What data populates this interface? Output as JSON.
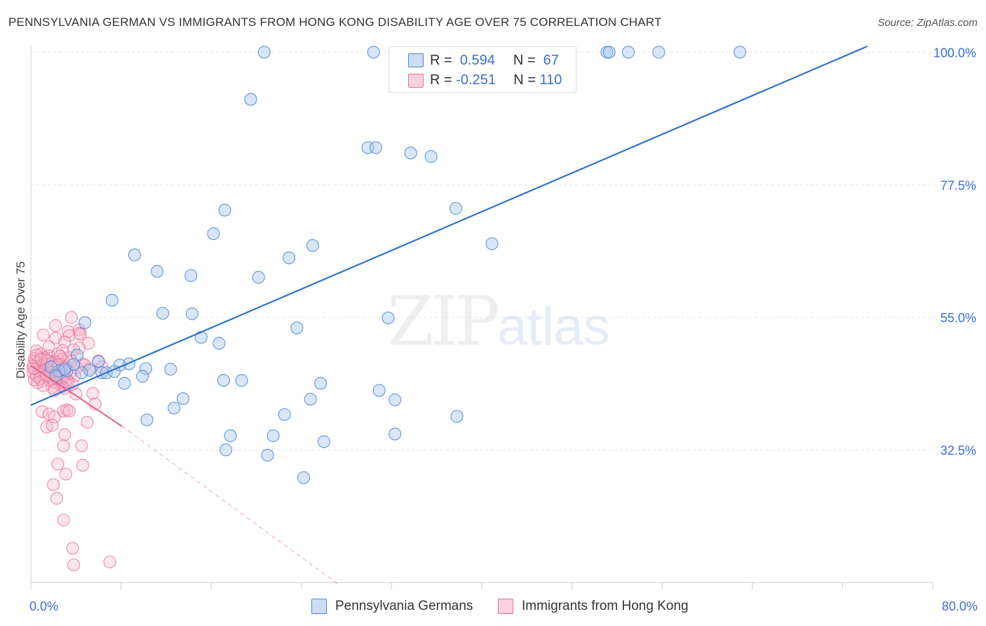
{
  "header": {
    "title": "PENNSYLVANIA GERMAN VS IMMIGRANTS FROM HONG KONG DISABILITY AGE OVER 75 CORRELATION CHART",
    "source": "Source: ZipAtlas.com"
  },
  "watermark": {
    "zip": "ZIP",
    "atlas": "atlas"
  },
  "colors": {
    "blue": "#4a85d8",
    "blue_fill": "rgba(168,200,240,0.45)",
    "blue_line": "#2f72d0",
    "pink": "#e8709a",
    "pink_fill": "rgba(245,180,200,0.35)",
    "pink_line": "#e06090",
    "grid": "#e4e4e4",
    "tick_label": "#3a6fd8"
  },
  "stats": {
    "rows": [
      {
        "r_label": "R =",
        "r_value": "0.594",
        "n_label": "N =",
        "n_value": "67"
      },
      {
        "r_label": "R =",
        "r_value": "-0.251",
        "n_label": "N =",
        "n_value": "110"
      }
    ]
  },
  "legend": {
    "items": [
      {
        "label": "Pennsylvania Germans"
      },
      {
        "label": "Immigrants from Hong Kong"
      }
    ]
  },
  "chart_data": {
    "type": "scatter",
    "title": "PENNSYLVANIA GERMAN VS IMMIGRANTS FROM HONG KONG DISABILITY AGE OVER 75 CORRELATION CHART",
    "xlabel": "",
    "ylabel": "Disability Age Over 75",
    "xlim": [
      0,
      80
    ],
    "ylim": [
      10,
      101
    ],
    "x_tick_labels": [
      "0.0%",
      "80.0%"
    ],
    "y_ticks": [
      32.5,
      55.0,
      77.5,
      100.0
    ],
    "y_tick_labels": [
      "32.5%",
      "55.0%",
      "77.5%",
      "100.0%"
    ],
    "grid": true,
    "series": [
      {
        "name": "Pennsylvania Germans",
        "r": 0.594,
        "n": 67,
        "trend": {
          "x": [
            0,
            74.2
          ],
          "y": [
            40.1,
            101
          ]
        },
        "points": [
          [
            20.7,
            100
          ],
          [
            30.4,
            100
          ],
          [
            51.1,
            100
          ],
          [
            51.3,
            100
          ],
          [
            55.7,
            100
          ],
          [
            53.0,
            100
          ],
          [
            62.9,
            100
          ],
          [
            19.5,
            92
          ],
          [
            29.9,
            83.8
          ],
          [
            30.6,
            83.8
          ],
          [
            33.7,
            82.9
          ],
          [
            35.5,
            82.3
          ],
          [
            17.2,
            73.2
          ],
          [
            37.7,
            73.5
          ],
          [
            16.2,
            69.2
          ],
          [
            40.9,
            67.5
          ],
          [
            25.0,
            67.2
          ],
          [
            9.2,
            65.6
          ],
          [
            22.9,
            65.1
          ],
          [
            11.2,
            62.8
          ],
          [
            14.2,
            62.1
          ],
          [
            20.2,
            61.8
          ],
          [
            7.2,
            57.9
          ],
          [
            11.7,
            55.7
          ],
          [
            14.3,
            55.6
          ],
          [
            4.8,
            54.1
          ],
          [
            31.7,
            54.9
          ],
          [
            23.6,
            53.2
          ],
          [
            15.1,
            51.6
          ],
          [
            16.7,
            50.6
          ],
          [
            4.1,
            48.6
          ],
          [
            8.7,
            47.1
          ],
          [
            7.9,
            46.9
          ],
          [
            10.2,
            46.3
          ],
          [
            12.4,
            46.2
          ],
          [
            3.2,
            45.9
          ],
          [
            6.3,
            45.6
          ],
          [
            6.7,
            45.6
          ],
          [
            9.9,
            45.0
          ],
          [
            2.5,
            45.9
          ],
          [
            17.1,
            44.3
          ],
          [
            18.7,
            44.3
          ],
          [
            8.3,
            43.8
          ],
          [
            25.7,
            43.8
          ],
          [
            30.9,
            42.6
          ],
          [
            13.5,
            41.2
          ],
          [
            24.8,
            41.1
          ],
          [
            32.3,
            41.0
          ],
          [
            12.7,
            39.6
          ],
          [
            22.5,
            38.5
          ],
          [
            37.8,
            38.2
          ],
          [
            10.3,
            37.6
          ],
          [
            17.7,
            34.9
          ],
          [
            21.5,
            34.9
          ],
          [
            32.3,
            35.2
          ],
          [
            26.0,
            33.9
          ],
          [
            17.3,
            32.5
          ],
          [
            21.0,
            31.6
          ],
          [
            24.2,
            27.8
          ],
          [
            3.8,
            47.0
          ],
          [
            5.2,
            46.0
          ],
          [
            1.8,
            46.6
          ],
          [
            4.5,
            45.6
          ],
          [
            6.0,
            47.5
          ],
          [
            3.0,
            46.2
          ],
          [
            7.4,
            45.8
          ],
          [
            2.2,
            45.1
          ]
        ]
      },
      {
        "name": "Immigrants from Hong Kong",
        "r": -0.251,
        "n": 110,
        "trend": {
          "x": [
            0,
            8.1
          ],
          "y": [
            46.8,
            36.5
          ]
        },
        "trend_dashed": {
          "x": [
            8.1,
            27.2
          ],
          "y": [
            36.5,
            9.8
          ]
        },
        "points": [
          [
            3.6,
            55.0
          ],
          [
            2.2,
            53.6
          ],
          [
            3.3,
            52.6
          ],
          [
            4.3,
            52.9
          ],
          [
            4.3,
            52.3
          ],
          [
            1.1,
            52.0
          ],
          [
            3.4,
            51.9
          ],
          [
            4.4,
            52.1
          ],
          [
            2.2,
            51.5
          ],
          [
            5.1,
            50.6
          ],
          [
            3.0,
            50.8
          ],
          [
            1.6,
            50.0
          ],
          [
            4.3,
            49.8
          ],
          [
            0.5,
            49.3
          ],
          [
            2.8,
            49.4
          ],
          [
            3.8,
            49.5
          ],
          [
            0.9,
            48.8
          ],
          [
            1.6,
            48.5
          ],
          [
            2.4,
            48.8
          ],
          [
            3.4,
            48.2
          ],
          [
            0.3,
            48.0
          ],
          [
            1.3,
            47.8
          ],
          [
            2.1,
            47.6
          ],
          [
            2.8,
            47.9
          ],
          [
            3.6,
            47.6
          ],
          [
            6.0,
            47.6
          ],
          [
            0.6,
            47.3
          ],
          [
            1.3,
            47.1
          ],
          [
            1.9,
            47.3
          ],
          [
            2.6,
            47.0
          ],
          [
            4.6,
            47.1
          ],
          [
            0.2,
            46.8
          ],
          [
            0.8,
            46.6
          ],
          [
            1.5,
            46.5
          ],
          [
            2.0,
            46.7
          ],
          [
            3.1,
            46.5
          ],
          [
            4.1,
            46.4
          ],
          [
            5.2,
            46.3
          ],
          [
            6.3,
            46.6
          ],
          [
            0.4,
            46.2
          ],
          [
            1.1,
            45.9
          ],
          [
            1.7,
            46.0
          ],
          [
            2.4,
            45.8
          ],
          [
            3.5,
            45.7
          ],
          [
            0.2,
            45.6
          ],
          [
            0.9,
            45.4
          ],
          [
            1.5,
            45.3
          ],
          [
            2.2,
            45.5
          ],
          [
            2.9,
            45.2
          ],
          [
            0.5,
            45.0
          ],
          [
            1.2,
            44.8
          ],
          [
            1.9,
            44.6
          ],
          [
            2.6,
            44.9
          ],
          [
            3.2,
            44.5
          ],
          [
            0.3,
            44.4
          ],
          [
            1.0,
            44.2
          ],
          [
            2.0,
            44.0
          ],
          [
            3.1,
            43.7
          ],
          [
            2.5,
            43.6
          ],
          [
            2.8,
            43.2
          ],
          [
            1.9,
            43.1
          ],
          [
            3.0,
            42.9
          ],
          [
            4.0,
            42.0
          ],
          [
            5.5,
            42.1
          ],
          [
            1.4,
            46.9
          ],
          [
            2.2,
            47.3
          ],
          [
            0.7,
            45.9
          ],
          [
            1.7,
            44.3
          ],
          [
            2.7,
            46.1
          ],
          [
            3.9,
            45.1
          ],
          [
            0.4,
            47.6
          ],
          [
            1.2,
            48.1
          ],
          [
            2.3,
            44.7
          ],
          [
            0.6,
            43.9
          ],
          [
            1.8,
            45.7
          ],
          [
            5.7,
            40.3
          ],
          [
            1.0,
            39.0
          ],
          [
            2.9,
            39.1
          ],
          [
            3.2,
            39.3
          ],
          [
            3.4,
            39.1
          ],
          [
            1.6,
            38.6
          ],
          [
            2.1,
            38.1
          ],
          [
            5.0,
            37.2
          ],
          [
            1.4,
            36.4
          ],
          [
            1.9,
            36.7
          ],
          [
            3.0,
            35.1
          ],
          [
            2.9,
            33.2
          ],
          [
            4.5,
            33.2
          ],
          [
            2.4,
            30.1
          ],
          [
            4.6,
            29.9
          ],
          [
            3.1,
            28.4
          ],
          [
            2.0,
            26.6
          ],
          [
            2.3,
            24.3
          ],
          [
            2.9,
            20.6
          ],
          [
            3.7,
            15.8
          ],
          [
            3.8,
            13.0
          ],
          [
            7.0,
            13.5
          ],
          [
            0.2,
            46.3
          ],
          [
            1.5,
            47.6
          ],
          [
            2.6,
            48.4
          ],
          [
            0.8,
            44.6
          ],
          [
            3.3,
            44.1
          ],
          [
            1.1,
            43.4
          ],
          [
            2.1,
            42.6
          ],
          [
            4.8,
            46.9
          ],
          [
            0.5,
            48.6
          ],
          [
            3.7,
            43.6
          ],
          [
            1.4,
            45.1
          ],
          [
            2.4,
            46.9
          ],
          [
            0.9,
            47.9
          ]
        ]
      }
    ]
  }
}
